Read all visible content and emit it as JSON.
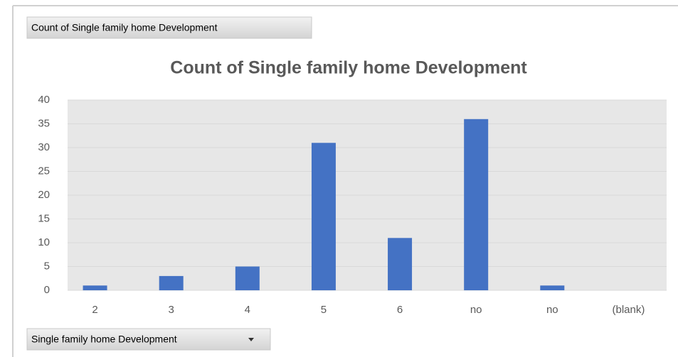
{
  "chart_data": {
    "type": "bar",
    "value_field_button": "Count of Single family home Development",
    "axis_field_button": "Single family home Development",
    "title": "Count of Single family home Development",
    "categories": [
      "2",
      "3",
      "4",
      "5",
      "6",
      "no",
      "no",
      "(blank)"
    ],
    "values": [
      1,
      3,
      5,
      31,
      11,
      36,
      1,
      null
    ],
    "color": "#4472c4",
    "ylim": [
      0,
      40
    ],
    "yticks": [
      0,
      5,
      10,
      15,
      20,
      25,
      30,
      35,
      40
    ],
    "grid": true
  }
}
